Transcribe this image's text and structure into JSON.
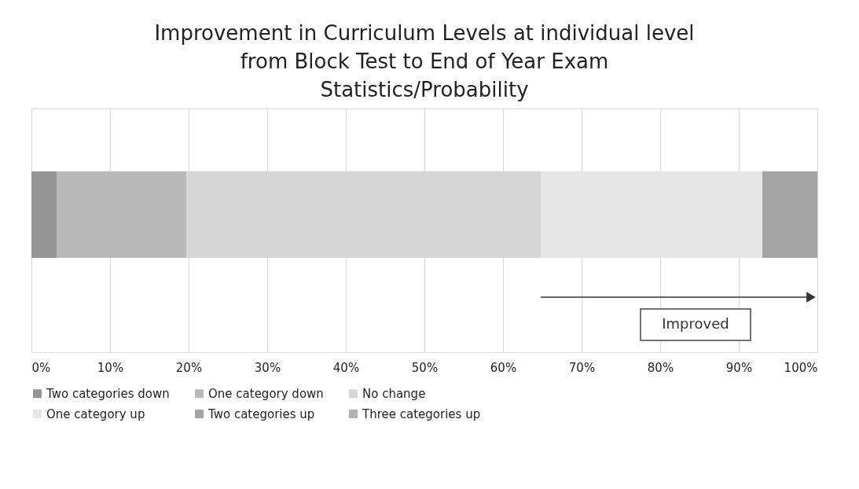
{
  "chart_data": {
    "type": "bar",
    "orientation": "horizontal",
    "stacked": true,
    "title": [
      "Improvement in Curriculum Levels at individual level",
      "from Block Test to End of Year Exam",
      "Statistics/Probability"
    ],
    "categories": [
      null
    ],
    "series": [
      {
        "name": "Two categories down",
        "color": "#959595",
        "values": [
          3.2
        ]
      },
      {
        "name": "One category down",
        "color": "#b9b9b9",
        "values": [
          16.5
        ]
      },
      {
        "name": "No change",
        "color": "#d6d6d6",
        "values": [
          45.1
        ]
      },
      {
        "name": "One category up",
        "color": "#e6e6e6",
        "values": [
          28.2
        ]
      },
      {
        "name": "Two categories up",
        "color": "#a4a4a4",
        "values": [
          7.0
        ]
      },
      {
        "name": "Three categories up",
        "color": "#b3b3b3",
        "values": [
          0
        ]
      }
    ],
    "xlim": [
      0,
      100
    ],
    "xticks": [
      {
        "value": 0,
        "label": "0%"
      },
      {
        "value": 10,
        "label": "10%"
      },
      {
        "value": 20,
        "label": "20%"
      },
      {
        "value": 30,
        "label": "30%"
      },
      {
        "value": 40,
        "label": "40%"
      },
      {
        "value": 50,
        "label": "50%"
      },
      {
        "value": 60,
        "label": "60%"
      },
      {
        "value": 70,
        "label": "70%"
      },
      {
        "value": 80,
        "label": "80%"
      },
      {
        "value": 90,
        "label": "90%"
      },
      {
        "value": 100,
        "label": "100%"
      }
    ],
    "grid": "x",
    "legend": "bottom",
    "annotations": [
      "Improved"
    ]
  }
}
